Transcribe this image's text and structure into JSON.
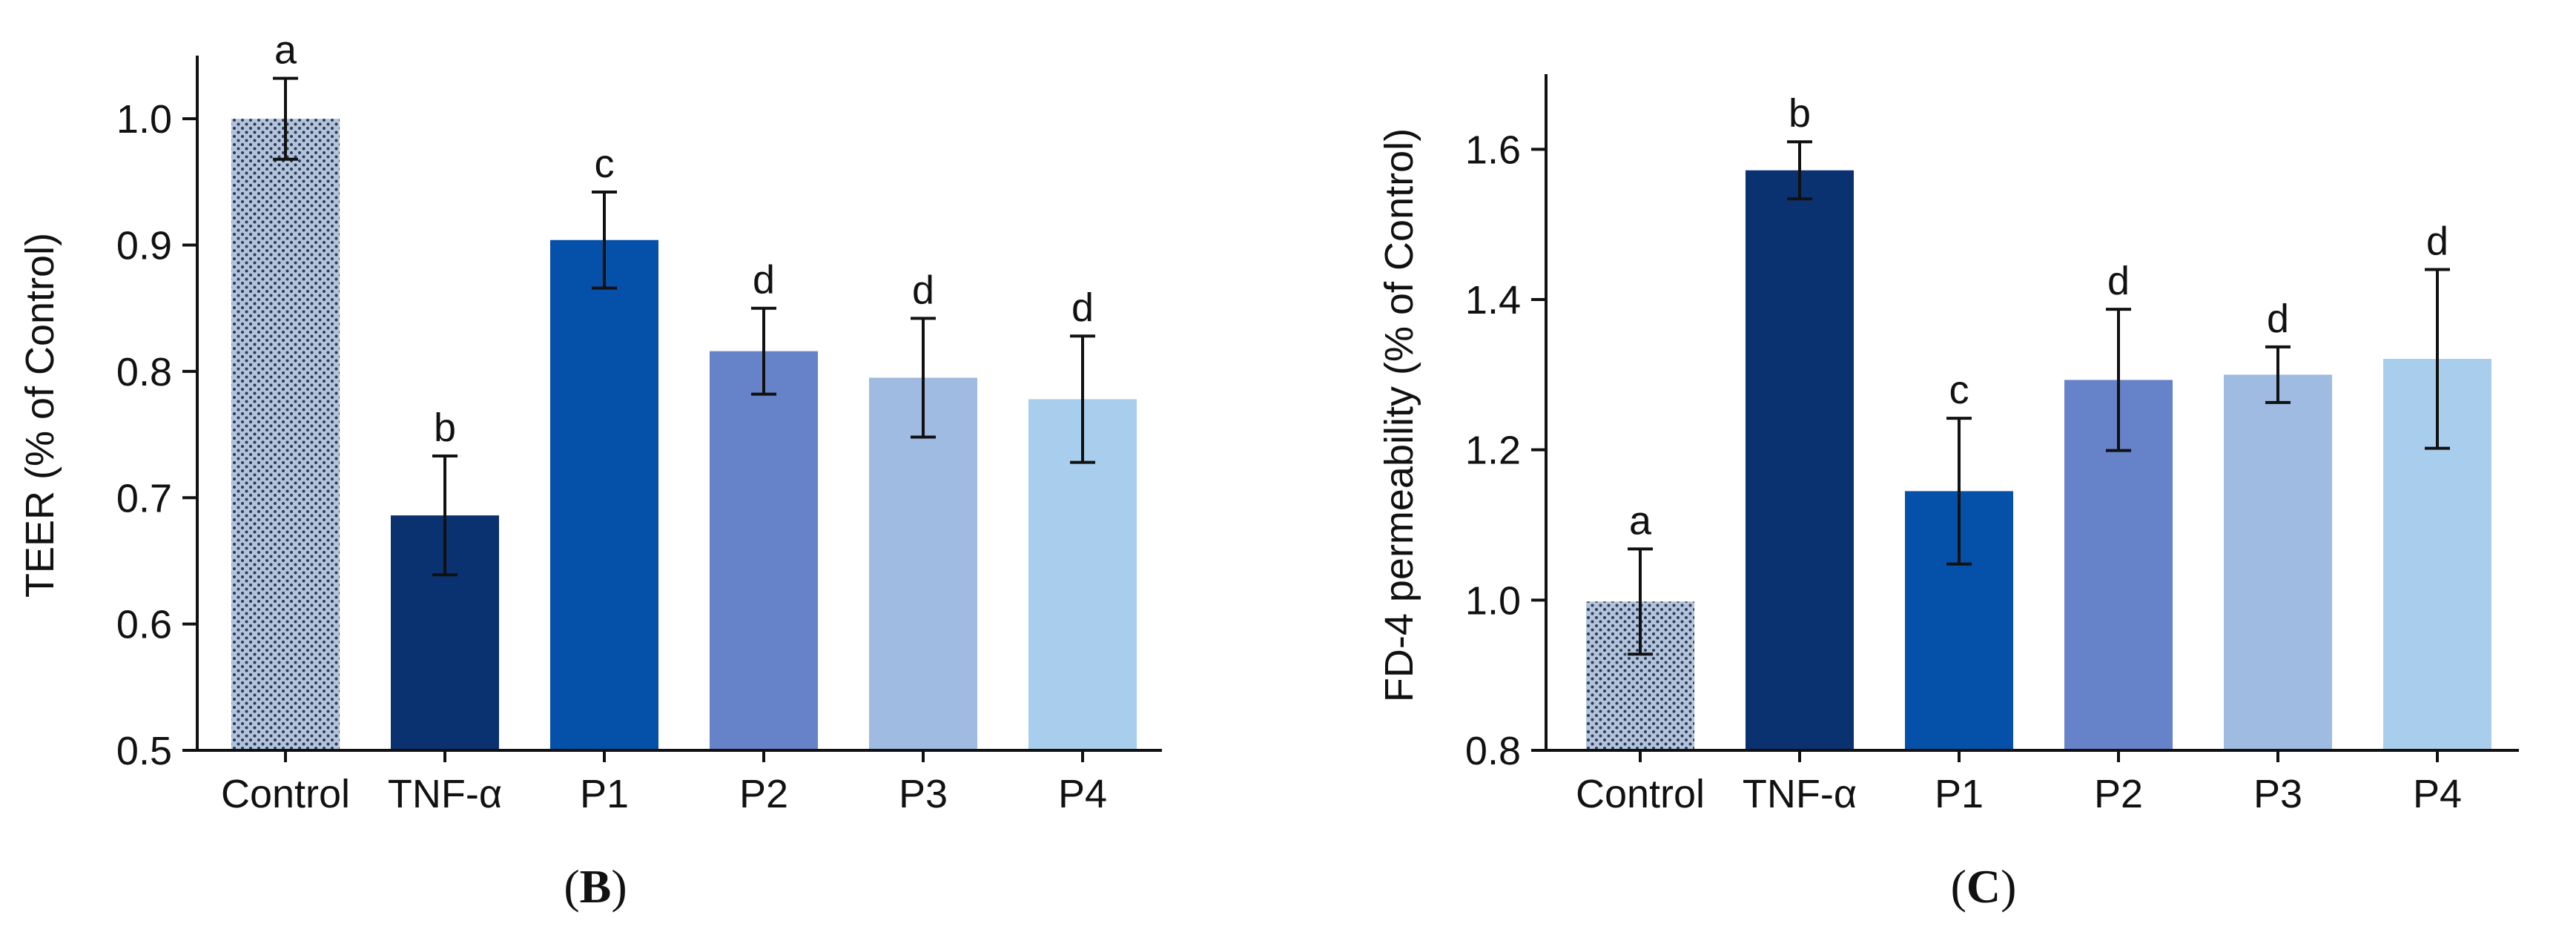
{
  "colors": {
    "control": "#b4c3d8",
    "control_dots": "#243a5e",
    "tnf": "#0a3270",
    "p1": "#0550a8",
    "p2": "#6682c8",
    "p3": "#9fbbe2",
    "p4": "#a8cded",
    "axis": "#111111"
  },
  "chart_data": [
    {
      "type": "bar",
      "panel": "(B)",
      "panel_letter": "B",
      "ylabel": "TEER (% of Control)",
      "xlabel": "",
      "ylim": [
        0.5,
        1.05
      ],
      "yticks": [
        0.5,
        0.6,
        0.7,
        0.8,
        0.9,
        1.0
      ],
      "ytick_labels": [
        "0.5",
        "0.6",
        "0.7",
        "0.8",
        "0.9",
        "1.0"
      ],
      "categories": [
        "Control",
        "TNF-α",
        "P1",
        "P2",
        "P3",
        "P4"
      ],
      "values": [
        1.0,
        0.686,
        0.904,
        0.816,
        0.795,
        0.778
      ],
      "errors": [
        0.032,
        0.047,
        0.038,
        0.034,
        0.047,
        0.05
      ],
      "letters": [
        "a",
        "b",
        "c",
        "d",
        "d",
        "d"
      ],
      "grid": false
    },
    {
      "type": "bar",
      "panel": "(C)",
      "panel_letter": "C",
      "ylabel": "FD-4 permeability (% of Control)",
      "xlabel": "",
      "ylim": [
        0.8,
        1.7
      ],
      "yticks": [
        0.8,
        1.0,
        1.2,
        1.4,
        1.6
      ],
      "ytick_labels": [
        "0.8",
        "1.0",
        "1.2",
        "1.4",
        "1.6"
      ],
      "categories": [
        "Control",
        "TNF-α",
        "P1",
        "P2",
        "P3",
        "P4"
      ],
      "values": [
        0.998,
        1.572,
        1.145,
        1.293,
        1.3,
        1.321
      ],
      "errors": [
        0.07,
        0.038,
        0.097,
        0.094,
        0.037,
        0.119
      ],
      "letters": [
        "a",
        "b",
        "c",
        "d",
        "d",
        "d"
      ],
      "grid": false
    }
  ]
}
